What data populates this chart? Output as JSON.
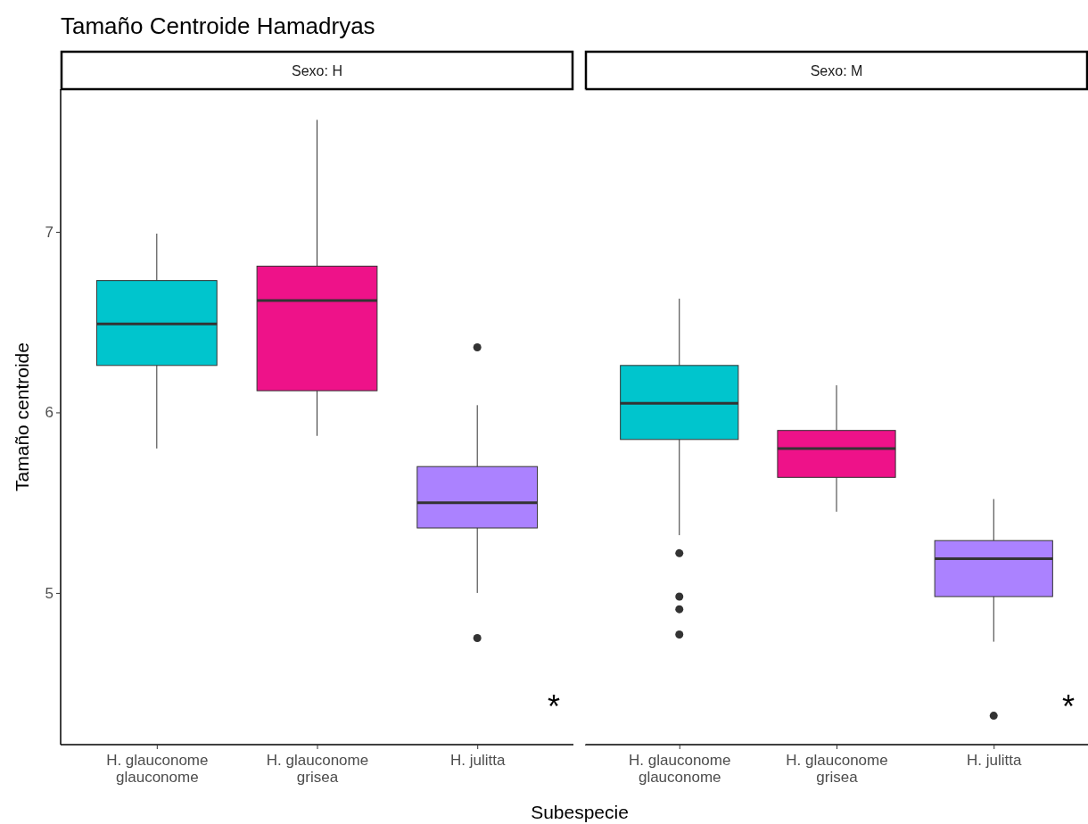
{
  "chart_data": [
    {
      "type": "box",
      "title": "Tamaño Centroide Hamadryas",
      "subtitle": "Sexo: H",
      "ylabel": "Tamaño centroide",
      "xlabel": "Subespecie",
      "categories": [
        "H. glauconome glauconome",
        "H. glauconome grisea",
        "H. julitta"
      ],
      "colors": [
        "#00c5cd",
        "#ee1289",
        "#ab82ff"
      ],
      "boxes": [
        {
          "low": 5.8,
          "q1": 6.26,
          "median": 6.49,
          "q3": 6.73,
          "high": 6.99
        },
        {
          "low": 5.87,
          "q1": 6.12,
          "median": 6.62,
          "q3": 6.81,
          "high": 7.62
        },
        {
          "low": 5.0,
          "q1": 5.36,
          "median": 5.5,
          "q3": 5.7,
          "high": 6.04,
          "outliers": [
            6.36,
            4.75
          ]
        }
      ],
      "ylim": [
        4.16,
        7.79
      ],
      "yticks": [
        5,
        6,
        7
      ],
      "grid": false,
      "annotations": [
        "*"
      ]
    },
    {
      "type": "box",
      "subtitle": "Sexo: M",
      "categories": [
        "H. glauconome glauconome",
        "H. glauconome grisea",
        "H. julitta"
      ],
      "colors": [
        "#00c5cd",
        "#ee1289",
        "#ab82ff"
      ],
      "boxes": [
        {
          "low": 5.32,
          "q1": 5.85,
          "median": 6.05,
          "q3": 6.26,
          "high": 6.63,
          "outliers": [
            5.22,
            4.98,
            4.91,
            4.77
          ]
        },
        {
          "low": 5.45,
          "q1": 5.64,
          "median": 5.8,
          "q3": 5.9,
          "high": 6.15
        },
        {
          "low": 4.73,
          "q1": 4.98,
          "median": 5.19,
          "q3": 5.29,
          "high": 5.52,
          "outliers": [
            4.32
          ]
        }
      ],
      "ylim": [
        4.16,
        7.79
      ],
      "yticks": [
        5,
        6,
        7
      ],
      "grid": false,
      "tick_labels": "x",
      "annotations": [
        "*"
      ]
    }
  ]
}
